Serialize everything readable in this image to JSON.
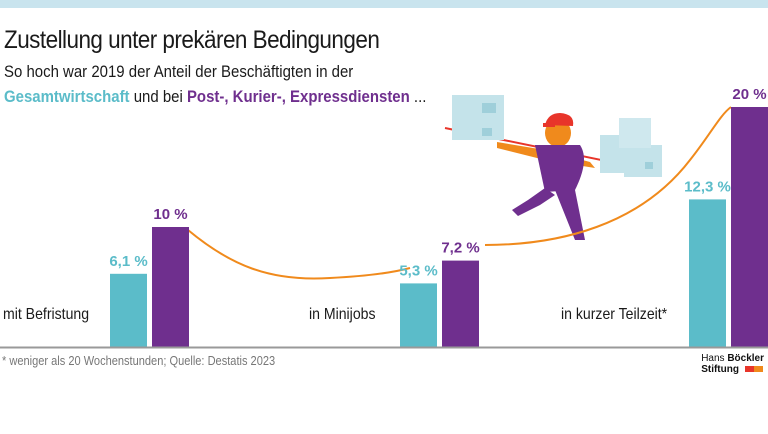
{
  "title": "Zustellung unter prekären Bedingungen",
  "subtitle_line1": "So hoch war 2019 der Anteil der Beschäftigten in der",
  "subtitle_line2": {
    "series1": "Gesamtwirtschaft",
    "connector": " und bei ",
    "series2": "Post-, Kurier-, Expressdiensten",
    "ellipsis": " ..."
  },
  "footnote": "* weniger als 20 Wochenstunden; Quelle: Destatis 2023",
  "logo": {
    "line1_light": "Hans ",
    "line1_bold": "Böckler",
    "line2": "Stiftung"
  },
  "colors": {
    "series1": "#5bbcc9",
    "series2": "#6f2f8e",
    "curve": "#f08a1c",
    "stripe": "#c9e4ee"
  },
  "chart_data": {
    "type": "bar",
    "categories": [
      "mit Befristung",
      "in Minijobs",
      "in kurzer Teilzeit*"
    ],
    "series": [
      {
        "name": "Gesamtwirtschaft",
        "values": [
          6.1,
          5.3,
          12.3
        ],
        "labels": [
          "6,1 %",
          "5,3 %",
          "12,3 %"
        ]
      },
      {
        "name": "Post-, Kurier-, Expressdiensten",
        "values": [
          10,
          7.2,
          20
        ],
        "labels": [
          "10 %",
          "7,2 %",
          "20 %"
        ]
      }
    ],
    "unit": "%",
    "ylim": [
      0,
      20
    ],
    "grid": false,
    "axes_visible": false
  }
}
